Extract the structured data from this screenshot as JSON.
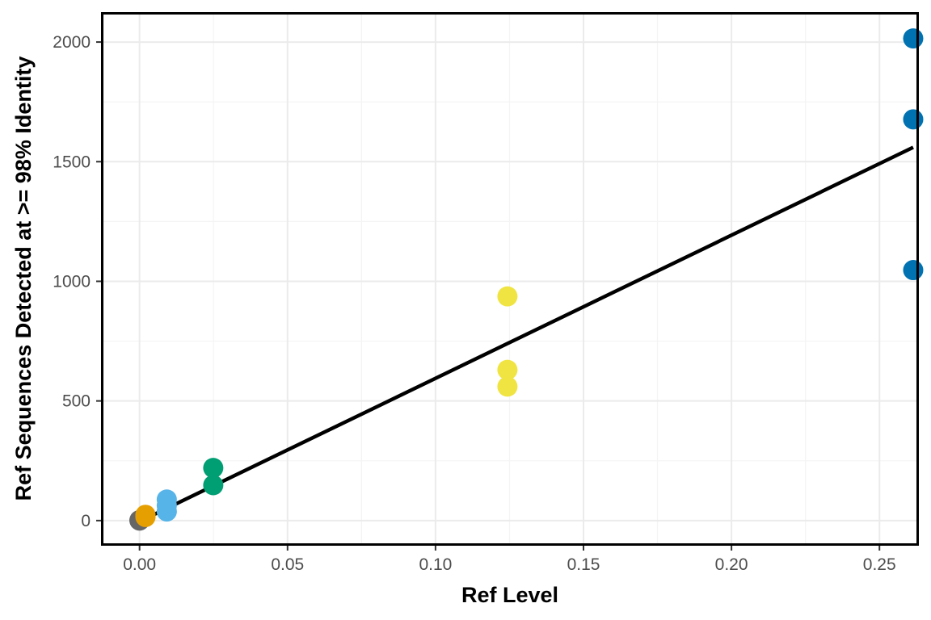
{
  "chart_data": {
    "type": "scatter",
    "title": "",
    "xlabel": "Ref Level",
    "ylabel": "Ref Sequences Detected at >= 98% Identity",
    "xlim": [
      -0.0122,
      0.2625
    ],
    "ylim": [
      -95,
      2115
    ],
    "x_ticks": [
      0.0,
      0.05,
      0.1,
      0.15,
      0.2,
      0.25
    ],
    "x_tick_labels": [
      "0.00",
      "0.05",
      "0.10",
      "0.15",
      "0.20",
      "0.25"
    ],
    "y_ticks": [
      0,
      500,
      1000,
      1500,
      2000
    ],
    "y_tick_labels": [
      "0",
      "500",
      "1000",
      "1500",
      "2000"
    ],
    "grid": true,
    "legend": "none",
    "series": [
      {
        "color": "#666666",
        "points": [
          [
            0.0,
            0
          ],
          [
            0.0,
            1
          ],
          [
            0.0,
            2
          ]
        ]
      },
      {
        "color": "#e69f00",
        "points": [
          [
            0.002,
            15
          ],
          [
            0.002,
            20
          ],
          [
            0.002,
            24
          ]
        ]
      },
      {
        "color": "#56b4e9",
        "points": [
          [
            0.0092,
            38
          ],
          [
            0.0092,
            63
          ],
          [
            0.0092,
            88
          ]
        ]
      },
      {
        "color": "#009e73",
        "points": [
          [
            0.0249,
            148
          ],
          [
            0.0249,
            220
          ]
        ]
      },
      {
        "color": "#f0e442",
        "points": [
          [
            0.1243,
            560
          ],
          [
            0.1243,
            630
          ],
          [
            0.1243,
            937
          ]
        ]
      },
      {
        "color": "#0072b2",
        "points": [
          [
            0.2614,
            1047
          ],
          [
            0.2614,
            1677
          ],
          [
            0.2614,
            2015
          ]
        ]
      }
    ],
    "fit_line": {
      "color": "#000000",
      "x": [
        0.0,
        0.2614
      ],
      "y": [
        -4,
        1560
      ]
    }
  }
}
